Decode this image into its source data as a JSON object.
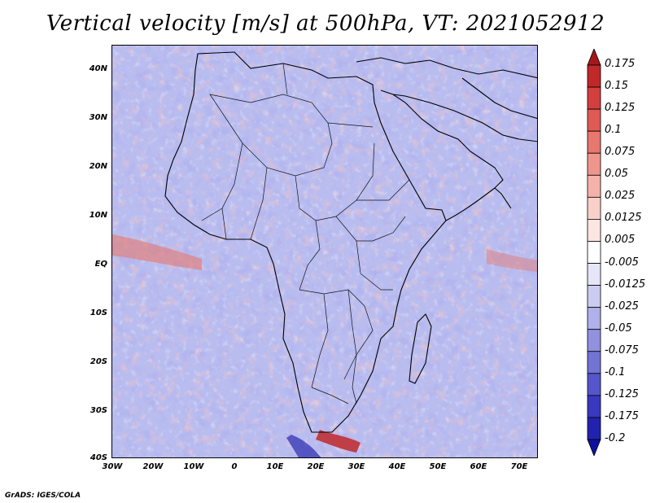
{
  "title": "Vertical velocity [m/s] at 500hPa, VT: 2021052912",
  "credit": "GrADS: IGES/COLA",
  "lat_labels": [
    "40N",
    "30N",
    "20N",
    "10N",
    "EQ",
    "10S",
    "20S",
    "30S",
    "40S"
  ],
  "lon_labels": [
    "30W",
    "20W",
    "10W",
    "0",
    "10E",
    "20E",
    "30E",
    "40E",
    "50E",
    "60E",
    "70E"
  ],
  "colorbar": {
    "labels": [
      "0.175",
      "0.15",
      "0.125",
      "0.1",
      "0.075",
      "0.05",
      "0.025",
      "0.0125",
      "0.005",
      "-0.005",
      "-0.0125",
      "-0.025",
      "-0.05",
      "-0.075",
      "-0.1",
      "-0.125",
      "-0.175",
      "-0.2"
    ],
    "colors": [
      "#a4171b",
      "#c0282a",
      "#d23f3e",
      "#df5a55",
      "#e8776f",
      "#ef968c",
      "#f4b3aa",
      "#f9d0c9",
      "#fbe6e2",
      "#ffffff",
      "#e6e6f8",
      "#ccccf2",
      "#b0b0ea",
      "#9191e0",
      "#7373d6",
      "#5555cc",
      "#3838c0",
      "#2222b0",
      "#1010a0"
    ]
  },
  "field_colors": {
    "background": "#b9bdf0",
    "ascent": "#e88a86",
    "descent": "#6e6ed6",
    "coast": "#000000"
  }
}
